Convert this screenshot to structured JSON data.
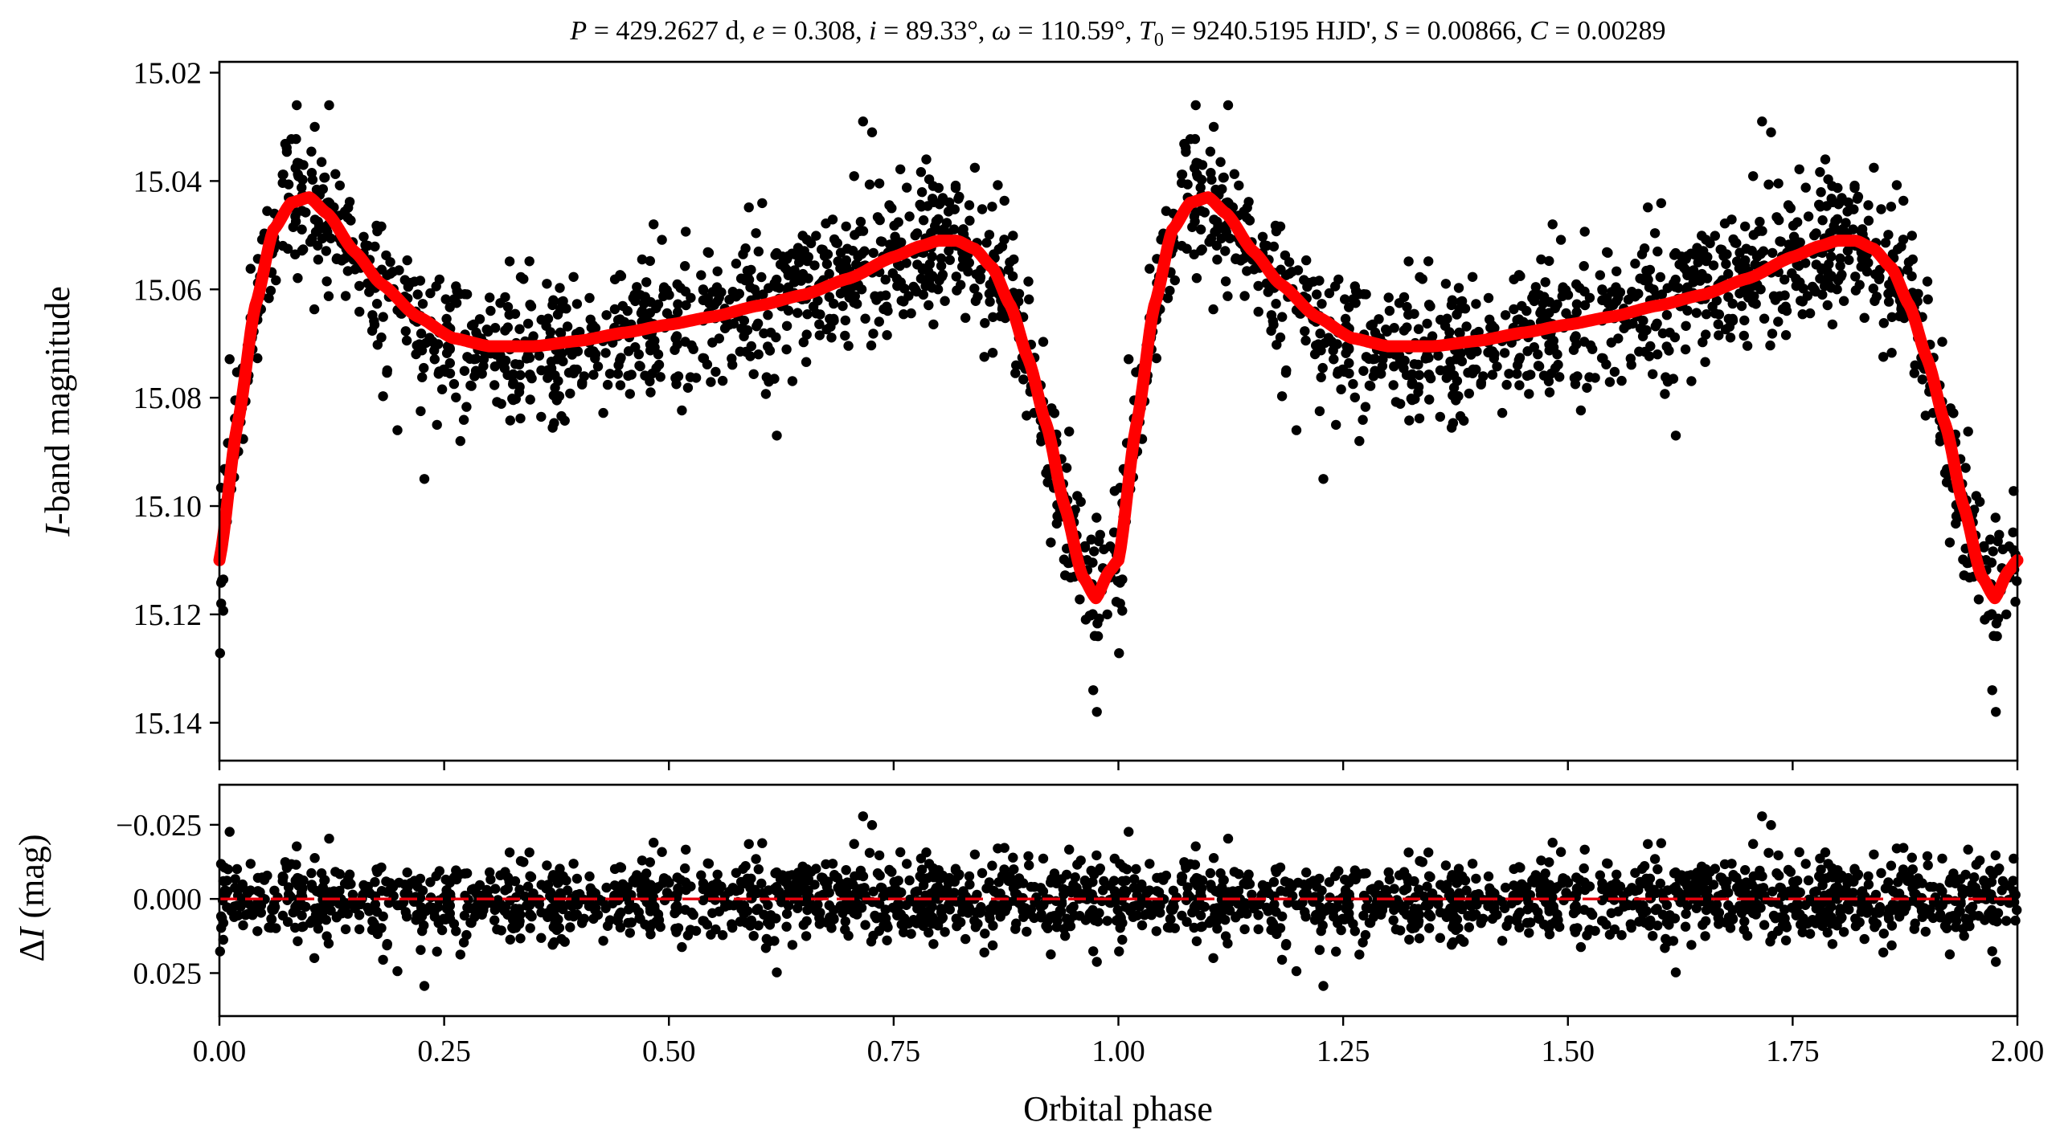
{
  "chart_data": [
    {
      "type": "scatter",
      "panel": "light-curve",
      "title": "P = 429.2627 d, e = 0.308, i = 89.33°, ω = 110.59°, T0 = 9240.5195 HJD', S = 0.00866, C = 0.00289",
      "title_parts": {
        "P_label": "P",
        "P_value": " = 429.2627 d, ",
        "e_label": "e",
        "e_value": " = 0.308, ",
        "i_label": "i",
        "i_value": " = 89.33°, ",
        "w_label": "ω",
        "w_value": " = 110.59°, ",
        "T_label": "T",
        "T_sub": "0",
        "T_value": " = 9240.5195 HJD', ",
        "S_label": "S",
        "S_value": " = 0.00866, ",
        "C_label": "C",
        "C_value": " = 0.00289"
      },
      "xlabel": "",
      "ylabel_italic": "I",
      "ylabel_rest": "-band magnitude",
      "xlim": [
        0,
        2
      ],
      "ylim": [
        15.147,
        15.018
      ],
      "y_inverted": true,
      "yticks": [
        15.02,
        15.04,
        15.06,
        15.08,
        15.1,
        15.12,
        15.14
      ],
      "ytick_labels": [
        "15.02",
        "15.04",
        "15.06",
        "15.08",
        "15.10",
        "15.12",
        "15.14"
      ],
      "series": [
        {
          "name": "observations",
          "kind": "scatter",
          "color": "#000000",
          "description": "OGLE I-band photometry folded on the orbital period (~1100 points per cycle, repeated over two cycles)",
          "scatter_sigma": 0.0065,
          "outliers": [
            {
              "x": 0.086,
              "y": 15.026
            },
            {
              "x": 0.122,
              "y": 15.026
            },
            {
              "x": 0.106,
              "y": 15.03
            },
            {
              "x": 0.716,
              "y": 15.029
            },
            {
              "x": 0.726,
              "y": 15.031
            },
            {
              "x": 0.483,
              "y": 15.048
            },
            {
              "x": 0.228,
              "y": 15.095
            },
            {
              "x": 0.198,
              "y": 15.086
            },
            {
              "x": 0.242,
              "y": 15.085
            },
            {
              "x": 0.268,
              "y": 15.088
            },
            {
              "x": 0.62,
              "y": 15.087
            },
            {
              "x": 0.976,
              "y": 15.138
            },
            {
              "x": 0.972,
              "y": 15.134
            },
            {
              "x": 0.002,
              "y": 15.118
            }
          ]
        },
        {
          "name": "model",
          "kind": "line",
          "color": "#ff0000",
          "description": "Eccentric-orbit model light curve",
          "x": [
            0.0,
            0.02,
            0.04,
            0.06,
            0.08,
            0.1,
            0.12,
            0.15,
            0.18,
            0.22,
            0.26,
            0.3,
            0.35,
            0.4,
            0.45,
            0.5,
            0.55,
            0.6,
            0.65,
            0.7,
            0.75,
            0.78,
            0.8,
            0.82,
            0.84,
            0.86,
            0.88,
            0.9,
            0.92,
            0.94,
            0.96,
            0.975,
            0.99,
            1.0
          ],
          "y": [
            15.11,
            15.085,
            15.063,
            15.049,
            15.044,
            15.043,
            15.046,
            15.053,
            15.059,
            15.065,
            15.069,
            15.0705,
            15.0705,
            15.0695,
            15.068,
            15.0665,
            15.065,
            15.063,
            15.061,
            15.058,
            15.054,
            15.052,
            15.051,
            15.051,
            15.0525,
            15.056,
            15.063,
            15.073,
            15.085,
            15.1,
            15.113,
            15.117,
            15.112,
            15.11
          ]
        }
      ],
      "period_repeat": 1.0
    },
    {
      "type": "scatter",
      "panel": "residuals",
      "xlabel": "Orbital phase",
      "ylabel_prefix": "Δ",
      "ylabel_italic": "I",
      "ylabel_rest": " (mag)",
      "xlim": [
        0,
        2
      ],
      "ylim": [
        0.0395,
        -0.0385
      ],
      "y_inverted": true,
      "yticks": [
        -0.025,
        0.0,
        0.025
      ],
      "ytick_labels": [
        "−0.025",
        "0.000",
        "0.025"
      ],
      "xticks": [
        0.0,
        0.25,
        0.5,
        0.75,
        1.0,
        1.25,
        1.5,
        1.75,
        2.0
      ],
      "xtick_labels": [
        "0.00",
        "0.25",
        "0.50",
        "0.75",
        "1.00",
        "1.25",
        "1.50",
        "1.75",
        "2.00"
      ],
      "series": [
        {
          "name": "residuals",
          "kind": "scatter",
          "color": "#000000",
          "scatter_sigma": 0.0065
        },
        {
          "name": "zero-line",
          "kind": "hline",
          "y": 0.0,
          "color": "#e8000b",
          "style": "dashed"
        }
      ]
    }
  ]
}
